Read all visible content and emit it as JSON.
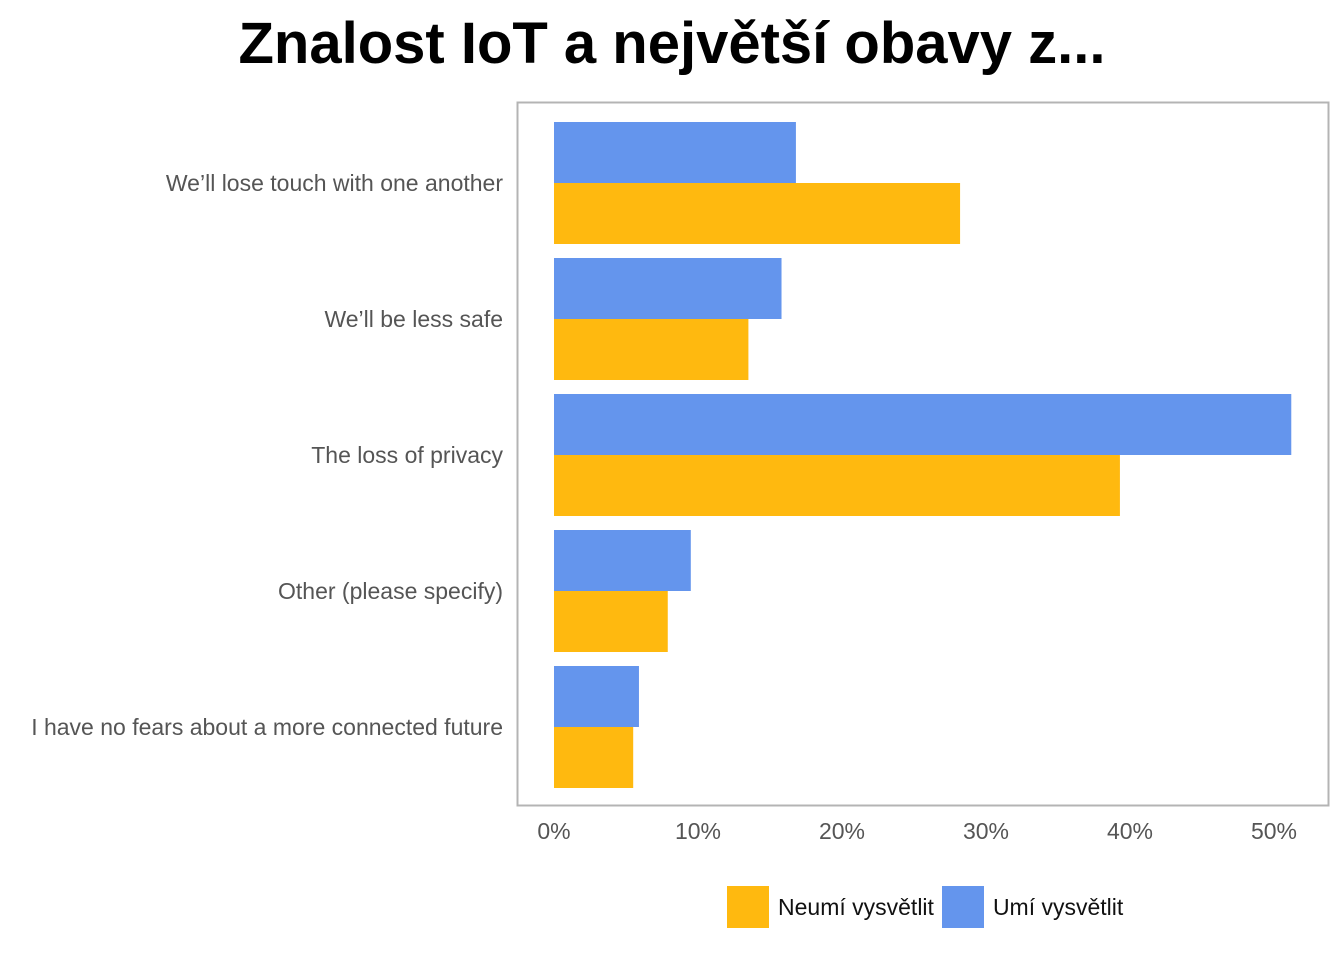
{
  "chart_data": {
    "type": "bar",
    "orientation": "horizontal",
    "title": "Znalost IoT a největší obavy z...",
    "categories": [
      "We’ll lose touch with one another",
      "We’ll be less safe",
      "The loss of privacy",
      "Other (please specify)",
      "I have no fears about a more connected future"
    ],
    "series": [
      {
        "name": "Umí vysvětlit",
        "color": "#6495ED",
        "values": [
          16.8,
          15.8,
          51.2,
          9.5,
          5.9
        ]
      },
      {
        "name": "Neumí vysvětlit",
        "color": "#FFB90F",
        "values": [
          28.2,
          13.5,
          39.3,
          7.9,
          5.5
        ]
      }
    ],
    "legend_order": [
      "Neumí vysvětlit",
      "Umí vysvětlit"
    ],
    "xticks": [
      "0%",
      "10%",
      "20%",
      "30%",
      "40%",
      "50%"
    ],
    "xlim": [
      0,
      54
    ],
    "xlabel": "",
    "ylabel": "",
    "grid": false,
    "legend_position": "bottom"
  }
}
